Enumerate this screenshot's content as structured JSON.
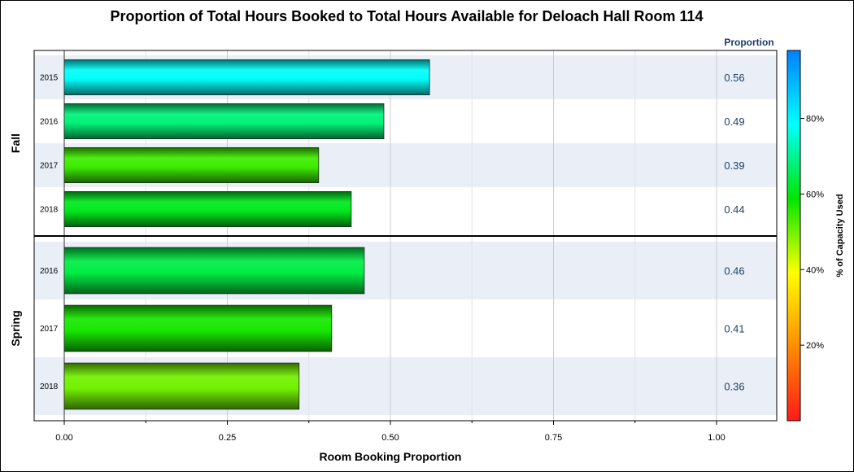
{
  "chart_data": {
    "type": "bar",
    "orientation": "horizontal",
    "title": "Proportion of Total Hours Booked to Total Hours Available for Deloach Hall Room 114",
    "xlabel": "Room Booking Proportion",
    "value_column_header": "Proportion",
    "xlim": [
      0,
      1.0
    ],
    "xticks": [
      "0.00",
      "0.25",
      "0.50",
      "0.75",
      "1.00"
    ],
    "xtick_values": [
      0,
      0.25,
      0.5,
      0.75,
      1.0
    ],
    "grid": true,
    "panels": [
      {
        "label": "Fall",
        "categories": [
          "2015",
          "2016",
          "2017",
          "2018"
        ],
        "values": [
          0.56,
          0.49,
          0.39,
          0.44
        ],
        "value_labels": [
          "0.56",
          "0.49",
          "0.39",
          "0.44"
        ],
        "capacity_used_pct": [
          78,
          68,
          54,
          61
        ]
      },
      {
        "label": "Spring",
        "categories": [
          "2016",
          "2017",
          "2018"
        ],
        "values": [
          0.46,
          0.41,
          0.36
        ],
        "value_labels": [
          "0.46",
          "0.41",
          "0.36"
        ],
        "capacity_used_pct": [
          64,
          57,
          50
        ]
      }
    ],
    "colorbar": {
      "label": "% of Capacity Used",
      "ticks": [
        "20%",
        "40%",
        "60%",
        "80%"
      ],
      "tick_values": [
        20,
        40,
        60,
        80
      ],
      "range": [
        0,
        98
      ],
      "colors": [
        "#ff1a1a",
        "#ff8c00",
        "#ffff00",
        "#00e600",
        "#00ffff",
        "#0080ff"
      ]
    }
  }
}
